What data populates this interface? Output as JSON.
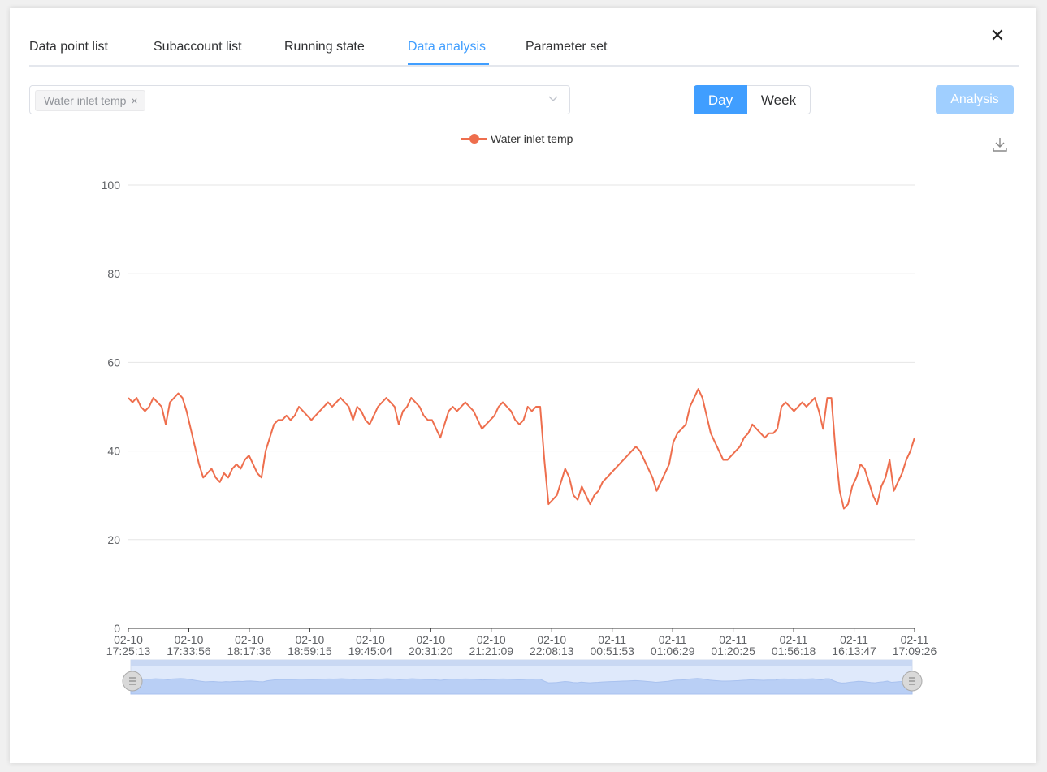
{
  "window": {
    "close_icon": "close-icon"
  },
  "tabs": [
    {
      "label": "Data point list"
    },
    {
      "label": "Subaccount list"
    },
    {
      "label": "Running state"
    },
    {
      "label": "Data analysis",
      "active": true
    },
    {
      "label": "Parameter set"
    }
  ],
  "filter": {
    "selected_tag": "Water inlet temp",
    "tag_close": "×"
  },
  "period": {
    "day_label": "Day",
    "week_label": "Week",
    "selected": "Day"
  },
  "analysis_button": "Analysis",
  "colors": {
    "accent": "#409eff",
    "series": "#ee6e4d",
    "disabled_button": "#a0cfff"
  },
  "chart_data": {
    "type": "line",
    "legend": "Water inlet temp",
    "legend_position": "top-center",
    "grid": true,
    "ylim": [
      0,
      100
    ],
    "yticks": [
      0,
      20,
      40,
      60,
      80,
      100
    ],
    "xtick_labels": [
      [
        "02-10",
        "17:25:13"
      ],
      [
        "02-10",
        "17:33:56"
      ],
      [
        "02-10",
        "18:17:36"
      ],
      [
        "02-10",
        "18:59:15"
      ],
      [
        "02-10",
        "19:45:04"
      ],
      [
        "02-10",
        "20:31:20"
      ],
      [
        "02-10",
        "21:21:09"
      ],
      [
        "02-10",
        "22:08:13"
      ],
      [
        "02-11",
        "00:51:53"
      ],
      [
        "02-11",
        "01:06:29"
      ],
      [
        "02-11",
        "01:20:25"
      ],
      [
        "02-11",
        "01:56:18"
      ],
      [
        "02-11",
        "16:13:47"
      ],
      [
        "02-11",
        "17:09:26"
      ]
    ],
    "series": [
      {
        "name": "Water inlet temp",
        "values": [
          52,
          51,
          52,
          50,
          49,
          50,
          52,
          51,
          50,
          46,
          51,
          52,
          53,
          52,
          49,
          45,
          41,
          37,
          34,
          35,
          36,
          34,
          33,
          35,
          34,
          36,
          37,
          36,
          38,
          39,
          37,
          35,
          34,
          40,
          43,
          46,
          47,
          47,
          48,
          47,
          48,
          50,
          49,
          48,
          47,
          48,
          49,
          50,
          51,
          50,
          51,
          52,
          51,
          50,
          47,
          50,
          49,
          47,
          46,
          48,
          50,
          51,
          52,
          51,
          50,
          46,
          49,
          50,
          52,
          51,
          50,
          48,
          47,
          47,
          45,
          43,
          46,
          49,
          50,
          49,
          50,
          51,
          50,
          49,
          47,
          45,
          46,
          47,
          48,
          50,
          51,
          50,
          49,
          47,
          46,
          47,
          50,
          49,
          50,
          50,
          38,
          28,
          29,
          30,
          33,
          36,
          34,
          30,
          29,
          32,
          30,
          28,
          30,
          31,
          33,
          34,
          35,
          36,
          37,
          38,
          39,
          40,
          41,
          40,
          38,
          36,
          34,
          31,
          33,
          35,
          37,
          42,
          44,
          45,
          46,
          50,
          52,
          54,
          52,
          48,
          44,
          42,
          40,
          38,
          38,
          39,
          40,
          41,
          43,
          44,
          46,
          45,
          44,
          43,
          44,
          44,
          45,
          50,
          51,
          50,
          49,
          50,
          51,
          50,
          51,
          52,
          49,
          45,
          52,
          52,
          40,
          31,
          27,
          28,
          32,
          34,
          37,
          36,
          33,
          30,
          28,
          32,
          34,
          38,
          31,
          33,
          35,
          38,
          40,
          43
        ]
      }
    ],
    "zoom_range": [
      0,
      100
    ]
  },
  "icons": {
    "download": "download-icon",
    "dropdown": "chevron-down-icon"
  }
}
